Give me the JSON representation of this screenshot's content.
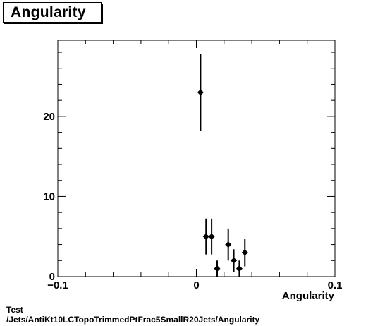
{
  "chart_data": {
    "type": "scatter",
    "title": "Angularity",
    "xlabel": "Angularity",
    "ylabel": "",
    "xlim": [
      -0.1,
      0.1
    ],
    "ylim": [
      0,
      29.5
    ],
    "x_ticks": [
      {
        "value": -0.1,
        "label": "−0.1"
      },
      {
        "value": 0,
        "label": "0"
      },
      {
        "value": 0.1,
        "label": "0.1"
      }
    ],
    "y_ticks": [
      {
        "value": 0,
        "label": "0"
      },
      {
        "value": 10,
        "label": "10"
      },
      {
        "value": 20,
        "label": "20"
      }
    ],
    "grid": false,
    "legend": "none",
    "marker_color": "#000000",
    "series": [
      {
        "points": [
          {
            "x": 0.003,
            "y": 23,
            "err": 4.8
          },
          {
            "x": 0.007,
            "y": 5,
            "err": 2.24
          },
          {
            "x": 0.011,
            "y": 5,
            "err": 2.24
          },
          {
            "x": 0.015,
            "y": 1,
            "err": 1
          },
          {
            "x": 0.023,
            "y": 4,
            "err": 2
          },
          {
            "x": 0.027,
            "y": 2,
            "err": 1.41
          },
          {
            "x": 0.031,
            "y": 1,
            "err": 1
          },
          {
            "x": 0.035,
            "y": 3,
            "err": 1.73
          }
        ]
      }
    ]
  },
  "footer": {
    "line1": "Test",
    "line2": "/Jets/AntiKt10LCTopoTrimmedPtFrac5SmallR20Jets/Angularity"
  }
}
